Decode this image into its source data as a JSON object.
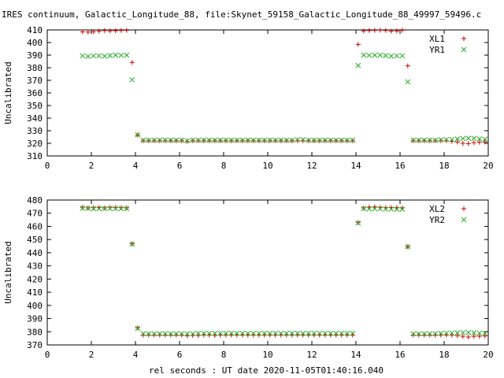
{
  "title": "IRES continuum, Galactic_Longitude_88, file:Skynet_59158_Galactic_Longitude_88_49997_59496.c",
  "xlabel": "rel seconds : UT date 2020-11-05T01:40:16.040",
  "colors": {
    "series_1": "#cc0000",
    "series_2": "#22aa22"
  },
  "chart_data": [
    {
      "type": "scatter",
      "ylabel": "Uncalibrated",
      "xlim": [
        0,
        20
      ],
      "ylim": [
        310,
        410
      ],
      "xticks": [
        0,
        2,
        4,
        6,
        8,
        10,
        12,
        14,
        16,
        18,
        20
      ],
      "yticks": [
        310,
        320,
        330,
        340,
        350,
        360,
        370,
        380,
        390,
        400,
        410
      ],
      "legend_position": "top-right",
      "series": [
        {
          "name": "XL1",
          "marker": "plus",
          "x": [
            1.6,
            1.85,
            2.1,
            2.35,
            2.6,
            2.85,
            3.1,
            3.35,
            3.6,
            3.85,
            4.1,
            4.35,
            4.6,
            4.85,
            5.1,
            5.35,
            5.6,
            5.85,
            6.1,
            6.35,
            6.6,
            6.85,
            7.1,
            7.35,
            7.6,
            7.85,
            8.1,
            8.35,
            8.6,
            8.85,
            9.1,
            9.35,
            9.6,
            9.85,
            10.1,
            10.35,
            10.6,
            10.85,
            11.1,
            11.35,
            11.6,
            11.85,
            12.1,
            12.35,
            12.6,
            12.85,
            13.1,
            13.35,
            13.6,
            13.85,
            14.1,
            14.35,
            14.6,
            14.85,
            15.1,
            15.35,
            15.6,
            15.85,
            16.1,
            16.35,
            16.6,
            16.85,
            17.1,
            17.35,
            17.6,
            17.85,
            18.1,
            18.35,
            18.6,
            18.85,
            19.1,
            19.35,
            19.6,
            19.85
          ],
          "y": [
            408.5,
            408.3,
            408.6,
            409,
            409.5,
            409.2,
            409.4,
            409.6,
            409.7,
            384.2,
            326.5,
            322,
            322,
            322,
            322,
            322,
            322,
            322,
            322,
            321.5,
            322,
            322,
            322,
            322,
            322,
            322,
            322,
            322,
            322,
            322,
            322,
            322,
            322,
            322,
            322,
            322,
            322,
            322,
            322,
            322,
            322,
            322,
            322,
            322,
            322,
            322,
            322,
            322,
            322,
            322,
            398.5,
            409.2,
            409.5,
            409.7,
            409.8,
            409.6,
            409,
            409.2,
            409.7,
            381.5,
            322,
            322,
            322,
            322,
            322,
            322,
            322,
            321.5,
            321,
            320,
            319.8,
            320.5,
            320.8,
            321
          ]
        },
        {
          "name": "YR1",
          "marker": "cross",
          "x": [
            1.6,
            1.85,
            2.1,
            2.35,
            2.6,
            2.85,
            3.1,
            3.35,
            3.6,
            3.85,
            4.1,
            4.35,
            4.6,
            4.85,
            5.1,
            5.35,
            5.6,
            5.85,
            6.1,
            6.35,
            6.6,
            6.85,
            7.1,
            7.35,
            7.6,
            7.85,
            8.1,
            8.35,
            8.6,
            8.85,
            9.1,
            9.35,
            9.6,
            9.85,
            10.1,
            10.35,
            10.6,
            10.85,
            11.1,
            11.35,
            11.6,
            11.85,
            12.1,
            12.35,
            12.6,
            12.85,
            13.1,
            13.35,
            13.6,
            13.85,
            14.1,
            14.35,
            14.6,
            14.85,
            15.1,
            15.35,
            15.6,
            15.85,
            16.1,
            16.35,
            16.6,
            16.85,
            17.1,
            17.35,
            17.6,
            17.85,
            18.1,
            18.35,
            18.6,
            18.85,
            19.1,
            19.35,
            19.6,
            19.85
          ],
          "y": [
            389.5,
            389,
            389.5,
            389.5,
            389.2,
            389.6,
            390,
            389.8,
            390,
            370.5,
            326.8,
            322.5,
            322.5,
            322.5,
            322.5,
            322.5,
            322.5,
            322.5,
            322.5,
            322,
            322.5,
            322.5,
            322.5,
            322.5,
            322.5,
            322.5,
            322.5,
            322.5,
            322.5,
            322.5,
            322.5,
            322.5,
            322.5,
            322.5,
            322.5,
            322.5,
            322.5,
            322.5,
            322.5,
            323,
            323,
            322.5,
            322.5,
            322.5,
            322.5,
            322.5,
            322.5,
            322.5,
            322.5,
            322.5,
            381.8,
            390,
            389.8,
            390,
            390,
            389.6,
            389.2,
            389.5,
            389.5,
            368.8,
            322.5,
            322.5,
            322.5,
            322.5,
            322.5,
            322.8,
            323,
            323,
            323.5,
            323.8,
            324,
            324,
            323.5,
            323.2
          ]
        }
      ]
    },
    {
      "type": "scatter",
      "ylabel": "Uncalibrated",
      "xlim": [
        0,
        20
      ],
      "ylim": [
        370,
        480
      ],
      "xticks": [
        0,
        2,
        4,
        6,
        8,
        10,
        12,
        14,
        16,
        18,
        20
      ],
      "yticks": [
        370,
        380,
        390,
        400,
        410,
        420,
        430,
        440,
        450,
        460,
        470,
        480
      ],
      "legend_position": "top-right",
      "series": [
        {
          "name": "XL2",
          "marker": "plus",
          "x": [
            1.6,
            1.85,
            2.1,
            2.35,
            2.6,
            2.85,
            3.1,
            3.35,
            3.6,
            3.85,
            4.1,
            4.35,
            4.6,
            4.85,
            5.1,
            5.35,
            5.6,
            5.85,
            6.1,
            6.35,
            6.6,
            6.85,
            7.1,
            7.35,
            7.6,
            7.85,
            8.1,
            8.35,
            8.6,
            8.85,
            9.1,
            9.35,
            9.6,
            9.85,
            10.1,
            10.35,
            10.6,
            10.85,
            11.1,
            11.35,
            11.6,
            11.85,
            12.1,
            12.35,
            12.6,
            12.85,
            13.1,
            13.35,
            13.6,
            13.85,
            14.1,
            14.35,
            14.6,
            14.85,
            15.1,
            15.35,
            15.6,
            15.85,
            16.1,
            16.35,
            16.6,
            16.85,
            17.1,
            17.35,
            17.6,
            17.85,
            18.1,
            18.35,
            18.6,
            18.85,
            19.1,
            19.35,
            19.6,
            19.85
          ],
          "y": [
            474.5,
            474,
            474.2,
            474.4,
            474,
            474.4,
            474.3,
            474.2,
            474,
            446.8,
            383,
            377.5,
            377.5,
            377.5,
            377.5,
            377.5,
            377.5,
            377.5,
            377.5,
            377,
            377.2,
            377.2,
            377.5,
            377.5,
            377.2,
            377.5,
            377.5,
            377.5,
            377.5,
            377.5,
            377.5,
            377.5,
            377.5,
            377.5,
            377.5,
            377.5,
            377.5,
            377.5,
            377.5,
            377.5,
            377.5,
            377.5,
            377.5,
            377.5,
            377.5,
            377.5,
            377.5,
            377.5,
            377.5,
            377.5,
            463,
            474,
            474.6,
            474.8,
            474.4,
            474.2,
            474.3,
            474.2,
            474,
            444.5,
            377.5,
            377.5,
            377.5,
            377.5,
            377.5,
            377.5,
            377.5,
            377.5,
            377,
            376.5,
            376,
            376.5,
            376.6,
            376.8
          ]
        },
        {
          "name": "YR2",
          "marker": "cross",
          "x": [
            1.6,
            1.85,
            2.1,
            2.35,
            2.6,
            2.85,
            3.1,
            3.35,
            3.6,
            3.85,
            4.1,
            4.35,
            4.6,
            4.85,
            5.1,
            5.35,
            5.6,
            5.85,
            6.1,
            6.35,
            6.6,
            6.85,
            7.1,
            7.35,
            7.6,
            7.85,
            8.1,
            8.35,
            8.6,
            8.85,
            9.1,
            9.35,
            9.6,
            9.85,
            10.1,
            10.35,
            10.6,
            10.85,
            11.1,
            11.35,
            11.6,
            11.85,
            12.1,
            12.35,
            12.6,
            12.85,
            13.1,
            13.35,
            13.6,
            13.85,
            14.1,
            14.35,
            14.6,
            14.85,
            15.1,
            15.35,
            15.6,
            15.85,
            16.1,
            16.35,
            16.6,
            16.85,
            17.1,
            17.35,
            17.6,
            17.85,
            18.1,
            18.35,
            18.6,
            18.85,
            19.1,
            19.35,
            19.6,
            19.85
          ],
          "y": [
            473.8,
            473.6,
            473.5,
            473.4,
            473.5,
            473.6,
            473.5,
            473.4,
            473.5,
            446.5,
            382.5,
            378.5,
            378.5,
            378.5,
            378.5,
            378.5,
            378.5,
            378.5,
            378.5,
            378.5,
            378.5,
            378.8,
            378.8,
            378.8,
            378.8,
            378.8,
            378.8,
            378.8,
            378.8,
            378.8,
            378.8,
            378.8,
            378.8,
            378.8,
            378.8,
            378.8,
            378.8,
            378.8,
            378.8,
            378.8,
            378.8,
            378.8,
            378.8,
            378.8,
            378.8,
            378.8,
            378.8,
            378.8,
            378.8,
            378.8,
            462.5,
            473.4,
            473.2,
            473.4,
            473.3,
            473.1,
            473.2,
            473,
            473,
            444.5,
            378.5,
            378.5,
            378.5,
            378.5,
            378.5,
            378.8,
            379,
            379,
            379.2,
            379.3,
            379.4,
            379.2,
            379,
            378.8
          ]
        }
      ]
    }
  ]
}
